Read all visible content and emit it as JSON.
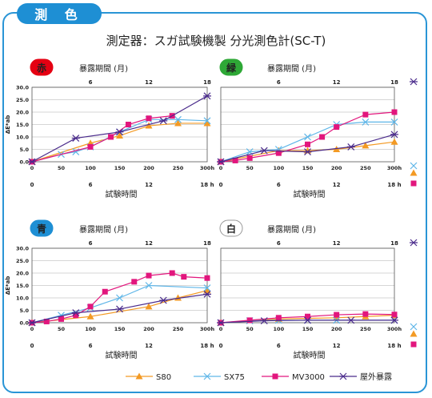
{
  "header": {
    "tab_label": "測 色",
    "title": "測定器：スガ試験機製 分光測色計(SC-T)"
  },
  "colors": {
    "S80": "#f39a24",
    "SX75": "#5fb6e8",
    "MV3000": "#e2167d",
    "outdoor": "#4b2c8c",
    "frame": "#2a95d6"
  },
  "legend": [
    {
      "key": "S80",
      "label": "S80",
      "marker": "triangle"
    },
    {
      "key": "SX75",
      "label": "SX75",
      "marker": "x"
    },
    {
      "key": "MV3000",
      "label": "MV3000",
      "marker": "square"
    },
    {
      "key": "outdoor",
      "label": "屋外暴露",
      "marker": "asterisk"
    }
  ],
  "chart_data": [
    {
      "type": "line",
      "badge": "赤",
      "badge_color": "#e50012",
      "badge_text_color": "#ffffff",
      "top_axis_label": "暴露期間 (月)",
      "xlabel": "試験時間",
      "ylabel": "ΔE*ab",
      "ylim": [
        0,
        30
      ],
      "yticks": [
        "0.0",
        "5.0",
        "10.0",
        "15.0",
        "20.0",
        "25.0",
        "30.0"
      ],
      "xlim": [
        0,
        300
      ],
      "xticks": [
        "0",
        "50",
        "100",
        "150",
        "200",
        "250",
        "300h"
      ],
      "month_ticks": [
        "6",
        "12",
        "18"
      ],
      "month_ticks_bottom": [
        "0",
        "6",
        "12",
        "18 h"
      ],
      "series": [
        {
          "key": "S80",
          "x": [
            0,
            100,
            150,
            200,
            250,
            300
          ],
          "y": [
            0,
            7.5,
            10.5,
            14.5,
            15.5,
            15.5
          ]
        },
        {
          "key": "SX75",
          "x": [
            0,
            50,
            75,
            100,
            150,
            200,
            250,
            300
          ],
          "y": [
            0,
            3,
            4,
            6,
            12,
            17,
            17,
            16.5
          ]
        },
        {
          "key": "MV3000",
          "x": [
            0,
            100,
            135,
            165,
            200,
            240
          ],
          "y": [
            0,
            6,
            10,
            15,
            17.5,
            18.5
          ]
        },
        {
          "key": "outdoor",
          "x": [
            0,
            75,
            150,
            225,
            300
          ],
          "y": [
            0,
            9.5,
            12,
            16.5,
            26.5
          ]
        }
      ]
    },
    {
      "type": "line",
      "badge": "緑",
      "badge_color": "#2ea836",
      "badge_text_color": "#ffffff",
      "top_axis_label": "暴露期間 (月)",
      "xlabel": "試験時間",
      "ylabel": "",
      "ylim": [
        0,
        30
      ],
      "xlim": [
        0,
        300
      ],
      "xticks": [
        "0",
        "50",
        "100",
        "150",
        "200",
        "250",
        "300h"
      ],
      "month_ticks": [
        "6",
        "12",
        "18"
      ],
      "month_ticks_bottom": [
        "0",
        "6",
        "12",
        "18 h"
      ],
      "series": [
        {
          "key": "S80",
          "x": [
            0,
            100,
            150,
            200,
            250,
            300
          ],
          "y": [
            0,
            4.5,
            4.5,
            5,
            6.5,
            8
          ]
        },
        {
          "key": "SX75",
          "x": [
            0,
            50,
            100,
            150,
            200,
            250,
            300
          ],
          "y": [
            0,
            4,
            5,
            10,
            15,
            16,
            16
          ]
        },
        {
          "key": "MV3000",
          "x": [
            0,
            25,
            50,
            100,
            150,
            175,
            200,
            250,
            300
          ],
          "y": [
            0,
            0.5,
            1.5,
            3.5,
            7,
            10,
            14,
            19,
            20
          ]
        },
        {
          "key": "outdoor",
          "x": [
            0,
            75,
            150,
            225,
            300
          ],
          "y": [
            0,
            4.5,
            4,
            6,
            11
          ]
        }
      ]
    },
    {
      "type": "line",
      "badge": "青",
      "badge_color": "#1e8fd4",
      "badge_text_color": "#ffffff",
      "top_axis_label": "暴露期間 (月)",
      "xlabel": "試験時間",
      "ylabel": "ΔE*ab",
      "ylim": [
        0,
        30
      ],
      "yticks": [
        "0.0",
        "5.0",
        "10.0",
        "15.0",
        "20.0",
        "25.0",
        "30.0"
      ],
      "xlim": [
        0,
        300
      ],
      "xticks": [
        "0",
        "50",
        "100",
        "150",
        "200",
        "250",
        "300h"
      ],
      "month_ticks": [
        "6",
        "12",
        "18"
      ],
      "month_ticks_bottom": [
        "0",
        "6",
        "12",
        "18 h"
      ],
      "series": [
        {
          "key": "S80",
          "x": [
            0,
            100,
            200,
            250,
            300
          ],
          "y": [
            0,
            2.5,
            6.5,
            10,
            13
          ]
        },
        {
          "key": "SX75",
          "x": [
            0,
            50,
            100,
            150,
            200,
            300
          ],
          "y": [
            0,
            3,
            6,
            10,
            15,
            14
          ]
        },
        {
          "key": "MV3000",
          "x": [
            0,
            25,
            50,
            75,
            100,
            125,
            175,
            200,
            240,
            260,
            300
          ],
          "y": [
            0,
            0.5,
            1.5,
            3,
            6.5,
            12.5,
            16.5,
            19,
            20,
            18.5,
            18
          ]
        },
        {
          "key": "outdoor",
          "x": [
            0,
            75,
            150,
            225,
            300
          ],
          "y": [
            0,
            4,
            5.5,
            9,
            11.5
          ]
        }
      ]
    },
    {
      "type": "line",
      "badge": "白",
      "badge_color": "#ffffff",
      "badge_text_color": "#777777",
      "top_axis_label": "暴露期間 (月)",
      "xlabel": "試験時間",
      "ylabel": "",
      "ylim": [
        0,
        30
      ],
      "xlim": [
        0,
        300
      ],
      "xticks": [
        "0",
        "50",
        "100",
        "150",
        "200",
        "250",
        "300h"
      ],
      "month_ticks": [
        "6",
        "12",
        "18"
      ],
      "month_ticks_bottom": [
        "0",
        "6",
        "12",
        "18 h"
      ],
      "series": [
        {
          "key": "S80",
          "x": [
            0,
            100,
            200,
            250,
            300
          ],
          "y": [
            0,
            1.5,
            2,
            2.5,
            3
          ]
        },
        {
          "key": "SX75",
          "x": [
            0,
            50,
            100,
            150,
            200,
            300
          ],
          "y": [
            0,
            0.8,
            1,
            1,
            1,
            1
          ]
        },
        {
          "key": "MV3000",
          "x": [
            0,
            50,
            100,
            150,
            200,
            250,
            300
          ],
          "y": [
            0,
            1,
            2,
            2.5,
            3.2,
            3.5,
            3.3
          ]
        },
        {
          "key": "outdoor",
          "x": [
            0,
            75,
            150,
            225,
            300
          ],
          "y": [
            0,
            0.8,
            1,
            1,
            1
          ]
        }
      ]
    }
  ]
}
